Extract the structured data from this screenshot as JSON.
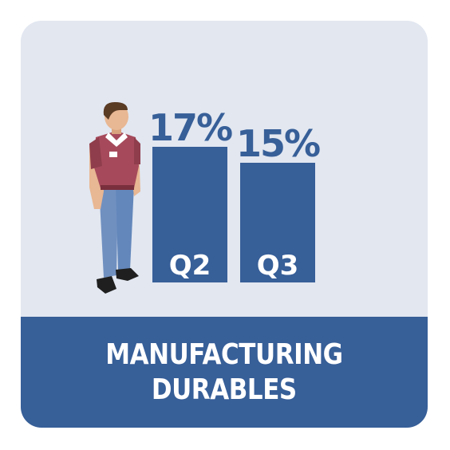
{
  "chart_data": {
    "type": "bar",
    "categories": [
      "Q2",
      "Q3"
    ],
    "values": [
      17,
      15
    ],
    "value_labels": [
      "17%",
      "15%"
    ],
    "unit": "%",
    "title": "MANUFACTURING DURABLES",
    "grid": false,
    "legend": "none"
  },
  "banner": {
    "line1": "MANUFACTURING",
    "line2": "DURABLES"
  },
  "colors": {
    "background": "#e2e7f0",
    "bar": "#375f98",
    "banner": "#375f98",
    "text_light": "#ffffff"
  },
  "illustration": {
    "icon": "worker-figure-icon"
  }
}
